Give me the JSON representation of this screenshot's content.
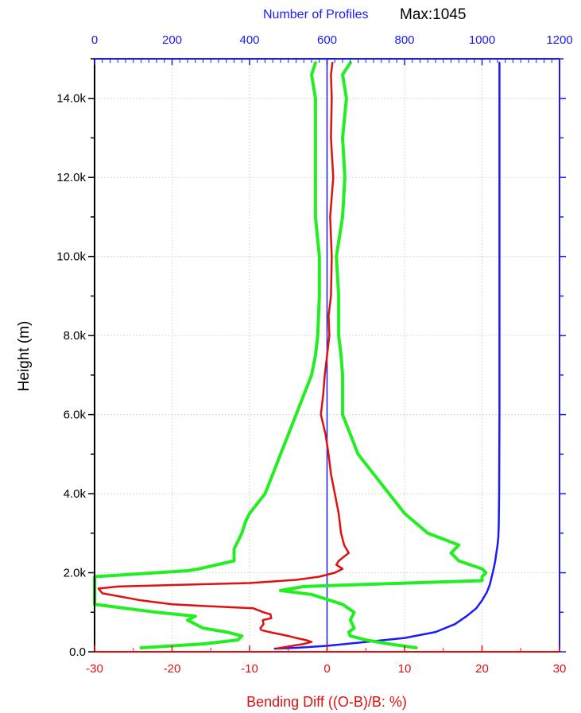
{
  "chart_data": {
    "type": "line",
    "title": "",
    "top_axis": {
      "label": "Number of Profiles",
      "annotation": "Max:1045",
      "range": [
        0,
        1200
      ],
      "ticks": [
        0,
        200,
        400,
        600,
        800,
        1000,
        1200
      ],
      "tick_labels": [
        "0",
        "200",
        "400",
        "600",
        "800",
        "1000",
        "1200"
      ],
      "color": "#1a1aff"
    },
    "bottom_axis": {
      "label": "Bending Diff ((O-B)/B: %)",
      "range": [
        -30,
        30
      ],
      "ticks": [
        -30,
        -20,
        -10,
        0,
        10,
        20,
        30
      ],
      "tick_labels": [
        "-30",
        "-20",
        "-10",
        "0",
        "10",
        "20",
        "30"
      ],
      "color": "#e01010"
    },
    "y_axis": {
      "label": "Height (m)",
      "range": [
        0,
        15000
      ],
      "ticks": [
        0,
        2000,
        4000,
        6000,
        8000,
        10000,
        12000,
        14000
      ],
      "tick_labels": [
        "0.0",
        "2.0k",
        "4.0k",
        "6.0k",
        "8.0k",
        "10.0k",
        "12.0k",
        "14.0k"
      ]
    },
    "grid": true,
    "series": [
      {
        "color": "#1a1aff",
        "x_axis": "top",
        "points": [
          [
            465,
            80
          ],
          [
            520,
            100
          ],
          [
            600,
            150
          ],
          [
            700,
            250
          ],
          [
            800,
            350
          ],
          [
            880,
            500
          ],
          [
            930,
            700
          ],
          [
            960,
            900
          ],
          [
            985,
            1100
          ],
          [
            1000,
            1300
          ],
          [
            1012,
            1500
          ],
          [
            1020,
            1700
          ],
          [
            1025,
            1900
          ],
          [
            1030,
            2100
          ],
          [
            1034,
            2300
          ],
          [
            1037,
            2500
          ],
          [
            1040,
            2700
          ],
          [
            1042,
            2900
          ],
          [
            1043,
            3200
          ],
          [
            1044,
            4000
          ],
          [
            1045,
            6000
          ],
          [
            1045,
            10000
          ],
          [
            1045,
            14900
          ]
        ]
      },
      {
        "color": "#e01010",
        "x_axis": "bottom",
        "points": [
          [
            -6.5,
            80
          ],
          [
            -4.5,
            150
          ],
          [
            -3,
            200
          ],
          [
            -2,
            250
          ],
          [
            -2.8,
            300
          ],
          [
            -4,
            350
          ],
          [
            -5,
            400
          ],
          [
            -6.2,
            450
          ],
          [
            -7.5,
            500
          ],
          [
            -8.5,
            550
          ],
          [
            -8.6,
            600
          ],
          [
            -8.2,
            700
          ],
          [
            -8.3,
            800
          ],
          [
            -7.2,
            850
          ],
          [
            -7.3,
            950
          ],
          [
            -8.2,
            1000
          ],
          [
            -9.5,
            1100
          ],
          [
            -15,
            1150
          ],
          [
            -20,
            1200
          ],
          [
            -24,
            1300
          ],
          [
            -29,
            1480
          ],
          [
            -29.5,
            1600
          ],
          [
            -27,
            1650
          ],
          [
            -18,
            1700
          ],
          [
            -10,
            1740
          ],
          [
            -4,
            1820
          ],
          [
            -1,
            1900
          ],
          [
            1,
            2000
          ],
          [
            2,
            2100
          ],
          [
            1.2,
            2200
          ],
          [
            1.5,
            2300
          ],
          [
            2.8,
            2500
          ],
          [
            2.2,
            2700
          ],
          [
            1.8,
            3000
          ],
          [
            1.5,
            3500
          ],
          [
            1,
            4000
          ],
          [
            0.5,
            4500
          ],
          [
            0.2,
            5000
          ],
          [
            -0.2,
            5500
          ],
          [
            -0.8,
            6000
          ],
          [
            -0.5,
            6500
          ],
          [
            -0.3,
            7000
          ],
          [
            0,
            7500
          ],
          [
            0.3,
            8000
          ],
          [
            0.2,
            8500
          ],
          [
            0.5,
            9000
          ],
          [
            0.6,
            10000
          ],
          [
            0.4,
            11000
          ],
          [
            0.8,
            12000
          ],
          [
            0.5,
            13000
          ],
          [
            0.6,
            14000
          ],
          [
            0.5,
            14600
          ],
          [
            0.7,
            14900
          ]
        ]
      },
      {
        "color": "#22ee22",
        "x_axis": "bottom",
        "points": [
          [
            -24,
            100
          ],
          [
            -16,
            200
          ],
          [
            -11.5,
            300
          ],
          [
            -11,
            400
          ],
          [
            -13,
            500
          ],
          [
            -16,
            600
          ],
          [
            -17,
            700
          ],
          [
            -18,
            800
          ],
          [
            -17,
            900
          ],
          [
            -22,
            1000
          ],
          [
            -26,
            1100
          ],
          [
            -30,
            1200
          ],
          [
            -30,
            1900
          ],
          [
            -26,
            1950
          ],
          [
            -18,
            2050
          ],
          [
            -16.5,
            2100
          ],
          [
            -12,
            2300
          ],
          [
            -12,
            2600
          ],
          [
            -11,
            3000
          ],
          [
            -10.5,
            3300
          ],
          [
            -10,
            3500
          ],
          [
            -8,
            4000
          ],
          [
            -7,
            4500
          ],
          [
            -6,
            5000
          ],
          [
            -5,
            5500
          ],
          [
            -4,
            6000
          ],
          [
            -3,
            6500
          ],
          [
            -2,
            7000
          ],
          [
            -1.5,
            7500
          ],
          [
            -1.2,
            8000
          ],
          [
            -1,
            9000
          ],
          [
            -1,
            10000
          ],
          [
            -1.5,
            11000
          ],
          [
            -1.5,
            12000
          ],
          [
            -1.5,
            13000
          ],
          [
            -1.5,
            14000
          ],
          [
            -2,
            14600
          ],
          [
            -1.5,
            14900
          ]
        ]
      },
      {
        "color": "#22ee22",
        "x_axis": "bottom",
        "points": [
          [
            11.5,
            100
          ],
          [
            8,
            200
          ],
          [
            5,
            300
          ],
          [
            3,
            400
          ],
          [
            2.8,
            500
          ],
          [
            3.5,
            600
          ],
          [
            3,
            800
          ],
          [
            3.5,
            1000
          ],
          [
            2,
            1200
          ],
          [
            -2,
            1450
          ],
          [
            -6,
            1550
          ],
          [
            -3,
            1650
          ],
          [
            4,
            1700
          ],
          [
            20,
            1800
          ],
          [
            20,
            1900
          ],
          [
            20.5,
            2000
          ],
          [
            20,
            2100
          ],
          [
            17,
            2300
          ],
          [
            16,
            2500
          ],
          [
            17,
            2700
          ],
          [
            13,
            3000
          ],
          [
            10,
            3500
          ],
          [
            8,
            4000
          ],
          [
            6,
            4500
          ],
          [
            4,
            5000
          ],
          [
            3,
            5500
          ],
          [
            2,
            6000
          ],
          [
            2,
            6500
          ],
          [
            2,
            7000
          ],
          [
            1.8,
            7500
          ],
          [
            1.5,
            8000
          ],
          [
            1.5,
            9000
          ],
          [
            1.2,
            10000
          ],
          [
            2,
            11000
          ],
          [
            2.3,
            12000
          ],
          [
            2,
            13000
          ],
          [
            2.5,
            14000
          ],
          [
            2,
            14600
          ],
          [
            3,
            14900
          ]
        ]
      }
    ]
  }
}
